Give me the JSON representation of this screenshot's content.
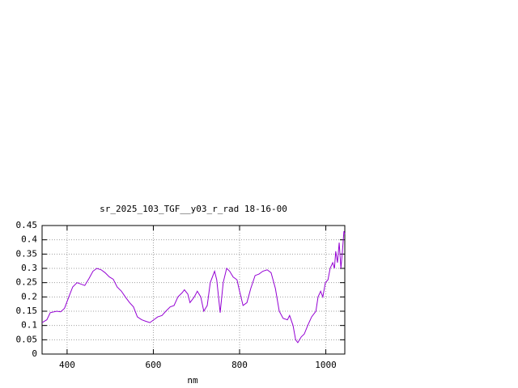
{
  "chart_data": {
    "type": "line",
    "title": "sr_2025_103_TGF__y03_r_rad 18-16-00",
    "x_label": "nm",
    "x": [
      342,
      353,
      361,
      376,
      385,
      394,
      404,
      413,
      423,
      432,
      441,
      451,
      460,
      469,
      479,
      488,
      498,
      507,
      516,
      526,
      535,
      545,
      554,
      563,
      573,
      582,
      592,
      601,
      610,
      620,
      629,
      639,
      648,
      657,
      667,
      672,
      680,
      685,
      695,
      702,
      710,
      717,
      725,
      732,
      742,
      747,
      755,
      762,
      770,
      777,
      785,
      794,
      800,
      808,
      817,
      826,
      836,
      845,
      854,
      864,
      873,
      883,
      892,
      901,
      911,
      916,
      924,
      930,
      935,
      943,
      950,
      958,
      967,
      977,
      982,
      988,
      993,
      999,
      1005,
      1010,
      1016,
      1020,
      1023,
      1027,
      1031,
      1035,
      1038,
      1042,
      1044
    ],
    "series": [
      {
        "name": "sr_2025_103_TGF__y03_r_rad",
        "color": "#9400d3",
        "values": [
          0.11,
          0.12,
          0.145,
          0.15,
          0.148,
          0.16,
          0.2,
          0.235,
          0.25,
          0.245,
          0.24,
          0.265,
          0.29,
          0.3,
          0.295,
          0.285,
          0.27,
          0.262,
          0.235,
          0.22,
          0.2,
          0.18,
          0.165,
          0.13,
          0.12,
          0.115,
          0.11,
          0.12,
          0.13,
          0.135,
          0.15,
          0.165,
          0.17,
          0.2,
          0.215,
          0.225,
          0.21,
          0.18,
          0.2,
          0.22,
          0.2,
          0.15,
          0.17,
          0.25,
          0.29,
          0.26,
          0.145,
          0.25,
          0.3,
          0.29,
          0.27,
          0.26,
          0.22,
          0.17,
          0.18,
          0.23,
          0.275,
          0.28,
          0.29,
          0.295,
          0.285,
          0.23,
          0.15,
          0.125,
          0.12,
          0.135,
          0.1,
          0.05,
          0.04,
          0.06,
          0.07,
          0.1,
          0.13,
          0.15,
          0.2,
          0.22,
          0.2,
          0.25,
          0.26,
          0.3,
          0.32,
          0.3,
          0.36,
          0.32,
          0.39,
          0.3,
          0.35,
          0.43,
          0.42
        ]
      }
    ],
    "xlim": [
      342,
      1044
    ],
    "ylim": [
      0,
      0.45
    ],
    "xticks": [
      400,
      600,
      800,
      1000
    ],
    "yticks": [
      0,
      0.05,
      0.1,
      0.15,
      0.2,
      0.25,
      0.3,
      0.35,
      0.4,
      0.45
    ],
    "grid": true
  }
}
